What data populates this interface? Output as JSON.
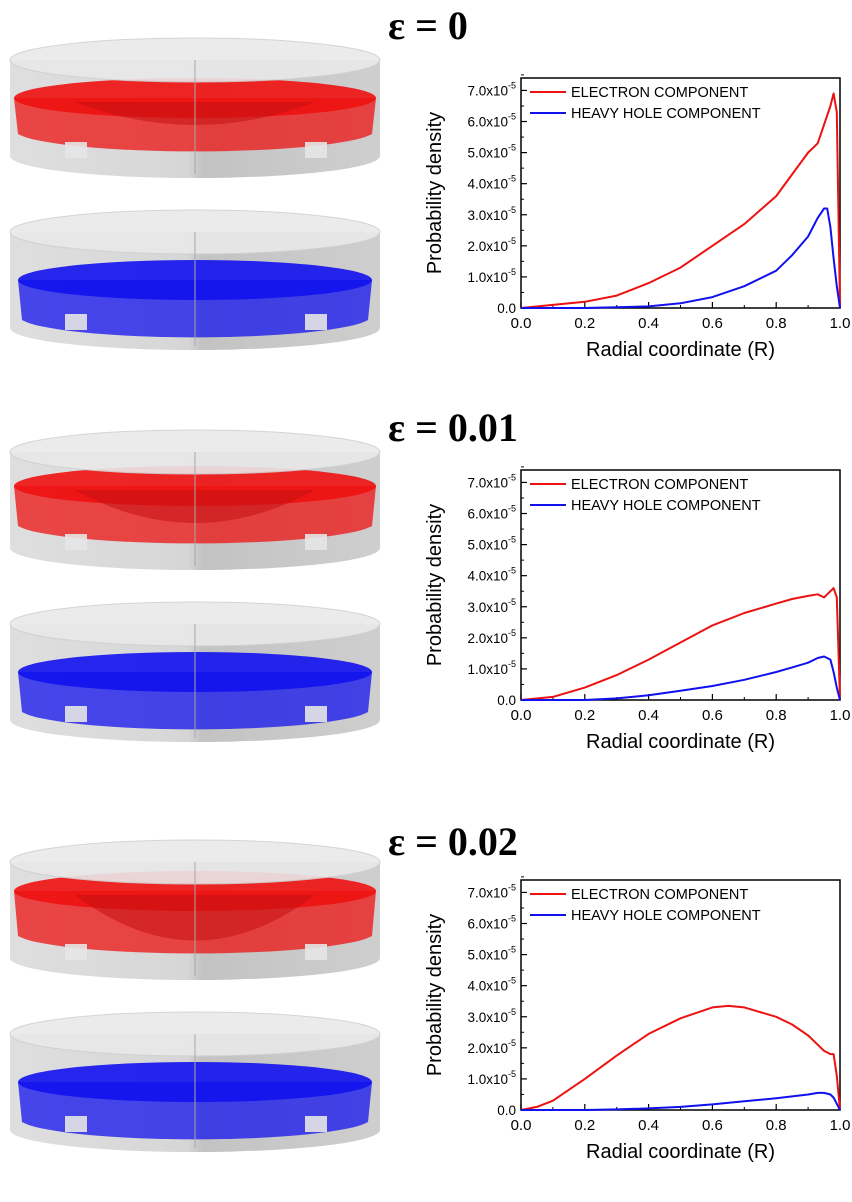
{
  "colors": {
    "electron": "#ee1111",
    "hole": "#1111ee",
    "shell": "#c8c8c8"
  },
  "panels": [
    {
      "label": "ε = 0"
    },
    {
      "label": "ε = 0.01"
    },
    {
      "label": "ε = 0.02"
    }
  ],
  "chart_data": [
    {
      "type": "line",
      "title": "",
      "xlabel": "Radial coordinate (R)",
      "ylabel": "Probability density",
      "xlim": [
        0,
        1
      ],
      "ylim": [
        0,
        7.4e-05
      ],
      "xticks": [
        "0.0",
        "0.2",
        "0.4",
        "0.6",
        "0.8",
        "1.0"
      ],
      "yticks": [
        {
          "mant": "0.0",
          "exp": ""
        },
        {
          "mant": "1.0x10",
          "exp": "-5"
        },
        {
          "mant": "2.0x10",
          "exp": "-5"
        },
        {
          "mant": "3.0x10",
          "exp": "-5"
        },
        {
          "mant": "4.0x10",
          "exp": "-5"
        },
        {
          "mant": "5.0x10",
          "exp": "-5"
        },
        {
          "mant": "6.0x10",
          "exp": "-5"
        },
        {
          "mant": "7.0x10",
          "exp": "-5"
        }
      ],
      "legend_position": "top",
      "series": [
        {
          "name": "ELECTRON COMPONENT",
          "color": "#ee1111",
          "x": [
            0,
            0.1,
            0.2,
            0.3,
            0.4,
            0.5,
            0.6,
            0.7,
            0.8,
            0.85,
            0.9,
            0.93,
            0.95,
            0.97,
            0.98,
            0.99,
            1.0
          ],
          "y": [
            0,
            1e-06,
            2e-06,
            4e-06,
            8e-06,
            1.3e-05,
            2e-05,
            2.7e-05,
            3.6e-05,
            4.3e-05,
            5e-05,
            5.3e-05,
            5.9e-05,
            6.5e-05,
            6.9e-05,
            6.3e-05,
            0
          ]
        },
        {
          "name": "HEAVY HOLE COMPONENT",
          "color": "#1111ee",
          "x": [
            0,
            0.2,
            0.4,
            0.5,
            0.6,
            0.7,
            0.8,
            0.85,
            0.9,
            0.93,
            0.95,
            0.96,
            0.97,
            0.98,
            0.99,
            1.0
          ],
          "y": [
            0,
            0,
            5e-07,
            1.5e-06,
            3.5e-06,
            7e-06,
            1.2e-05,
            1.7e-05,
            2.3e-05,
            2.9e-05,
            3.2e-05,
            3.2e-05,
            2.6e-05,
            1.6e-05,
            7e-06,
            0
          ]
        }
      ]
    },
    {
      "type": "line",
      "title": "",
      "xlabel": "Radial coordinate (R)",
      "ylabel": "Probability density",
      "xlim": [
        0,
        1
      ],
      "ylim": [
        0,
        7.4e-05
      ],
      "xticks": [
        "0.0",
        "0.2",
        "0.4",
        "0.6",
        "0.8",
        "1.0"
      ],
      "yticks": [
        {
          "mant": "0.0",
          "exp": ""
        },
        {
          "mant": "1.0x10",
          "exp": "-5"
        },
        {
          "mant": "2.0x10",
          "exp": "-5"
        },
        {
          "mant": "3.0x10",
          "exp": "-5"
        },
        {
          "mant": "4.0x10",
          "exp": "-5"
        },
        {
          "mant": "5.0x10",
          "exp": "-5"
        },
        {
          "mant": "6.0x10",
          "exp": "-5"
        },
        {
          "mant": "7.0x10",
          "exp": "-5"
        }
      ],
      "legend_position": "top",
      "series": [
        {
          "name": "ELECTRON COMPONENT",
          "color": "#ee1111",
          "x": [
            0,
            0.1,
            0.2,
            0.3,
            0.4,
            0.5,
            0.6,
            0.7,
            0.8,
            0.85,
            0.9,
            0.93,
            0.95,
            0.97,
            0.98,
            0.99,
            1.0
          ],
          "y": [
            0,
            1e-06,
            4e-06,
            8e-06,
            1.3e-05,
            1.85e-05,
            2.4e-05,
            2.8e-05,
            3.1e-05,
            3.25e-05,
            3.35e-05,
            3.4e-05,
            3.3e-05,
            3.5e-05,
            3.6e-05,
            3.3e-05,
            0
          ]
        },
        {
          "name": "HEAVY HOLE COMPONENT",
          "color": "#1111ee",
          "x": [
            0,
            0.2,
            0.3,
            0.4,
            0.5,
            0.6,
            0.7,
            0.8,
            0.85,
            0.9,
            0.93,
            0.95,
            0.97,
            0.98,
            0.99,
            1.0
          ],
          "y": [
            0,
            0,
            5e-07,
            1.5e-06,
            3e-06,
            4.5e-06,
            6.5e-06,
            9e-06,
            1.05e-05,
            1.2e-05,
            1.35e-05,
            1.4e-05,
            1.3e-05,
            9e-06,
            4e-06,
            0
          ]
        }
      ]
    },
    {
      "type": "line",
      "title": "",
      "xlabel": "Radial coordinate (R)",
      "ylabel": "Probability density",
      "xlim": [
        0,
        1
      ],
      "ylim": [
        0,
        7.4e-05
      ],
      "xticks": [
        "0.0",
        "0.2",
        "0.4",
        "0.6",
        "0.8",
        "1.0"
      ],
      "yticks": [
        {
          "mant": "0.0",
          "exp": ""
        },
        {
          "mant": "1.0x10",
          "exp": "-5"
        },
        {
          "mant": "2.0x10",
          "exp": "-5"
        },
        {
          "mant": "3.0x10",
          "exp": "-5"
        },
        {
          "mant": "4.0x10",
          "exp": "-5"
        },
        {
          "mant": "5.0x10",
          "exp": "-5"
        },
        {
          "mant": "6.0x10",
          "exp": "-5"
        },
        {
          "mant": "7.0x10",
          "exp": "-5"
        }
      ],
      "legend_position": "top",
      "series": [
        {
          "name": "ELECTRON COMPONENT",
          "color": "#ee1111",
          "x": [
            0,
            0.05,
            0.1,
            0.2,
            0.3,
            0.4,
            0.5,
            0.6,
            0.65,
            0.7,
            0.8,
            0.85,
            0.9,
            0.93,
            0.95,
            0.97,
            0.98,
            0.99,
            1.0
          ],
          "y": [
            0,
            1e-06,
            3e-06,
            1e-05,
            1.75e-05,
            2.45e-05,
            2.95e-05,
            3.3e-05,
            3.35e-05,
            3.3e-05,
            3e-05,
            2.75e-05,
            2.4e-05,
            2.1e-05,
            1.9e-05,
            1.8e-05,
            1.8e-05,
            1.1e-05,
            0
          ]
        },
        {
          "name": "HEAVY HOLE COMPONENT",
          "color": "#1111ee",
          "x": [
            0,
            0.2,
            0.3,
            0.4,
            0.5,
            0.6,
            0.7,
            0.8,
            0.9,
            0.93,
            0.95,
            0.97,
            0.98,
            0.99,
            1.0
          ],
          "y": [
            0,
            0,
            2e-07,
            5e-07,
            1e-06,
            1.8e-06,
            2.8e-06,
            3.8e-06,
            5e-06,
            5.5e-06,
            5.5e-06,
            5e-06,
            4e-06,
            2e-06,
            0
          ]
        }
      ]
    }
  ]
}
